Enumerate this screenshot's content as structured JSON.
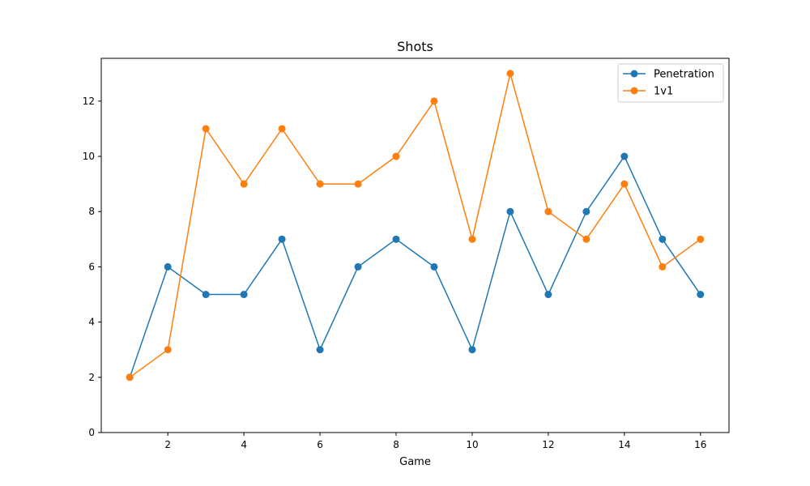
{
  "chart_data": {
    "type": "line",
    "title": "Shots",
    "xlabel": "Game",
    "ylabel": "",
    "x": [
      1,
      2,
      3,
      4,
      5,
      6,
      7,
      8,
      9,
      10,
      11,
      12,
      13,
      14,
      15,
      16
    ],
    "xlim": [
      0.25,
      16.75
    ],
    "ylim": [
      0,
      13.55
    ],
    "xticks": [
      2,
      4,
      6,
      8,
      10,
      12,
      14,
      16
    ],
    "yticks": [
      0,
      2,
      4,
      6,
      8,
      10,
      12
    ],
    "grid": false,
    "legend_position": "top-right",
    "series": [
      {
        "name": "Penetration",
        "color": "#1f77b4",
        "marker": "circle",
        "values": [
          2,
          6,
          5,
          5,
          7,
          3,
          6,
          7,
          6,
          3,
          8,
          5,
          8,
          10,
          7,
          5
        ]
      },
      {
        "name": "1v1",
        "color": "#ff7f0e",
        "marker": "circle",
        "values": [
          2,
          3,
          11,
          9,
          11,
          9,
          9,
          10,
          12,
          7,
          13,
          8,
          7,
          9,
          6,
          7
        ]
      }
    ]
  }
}
